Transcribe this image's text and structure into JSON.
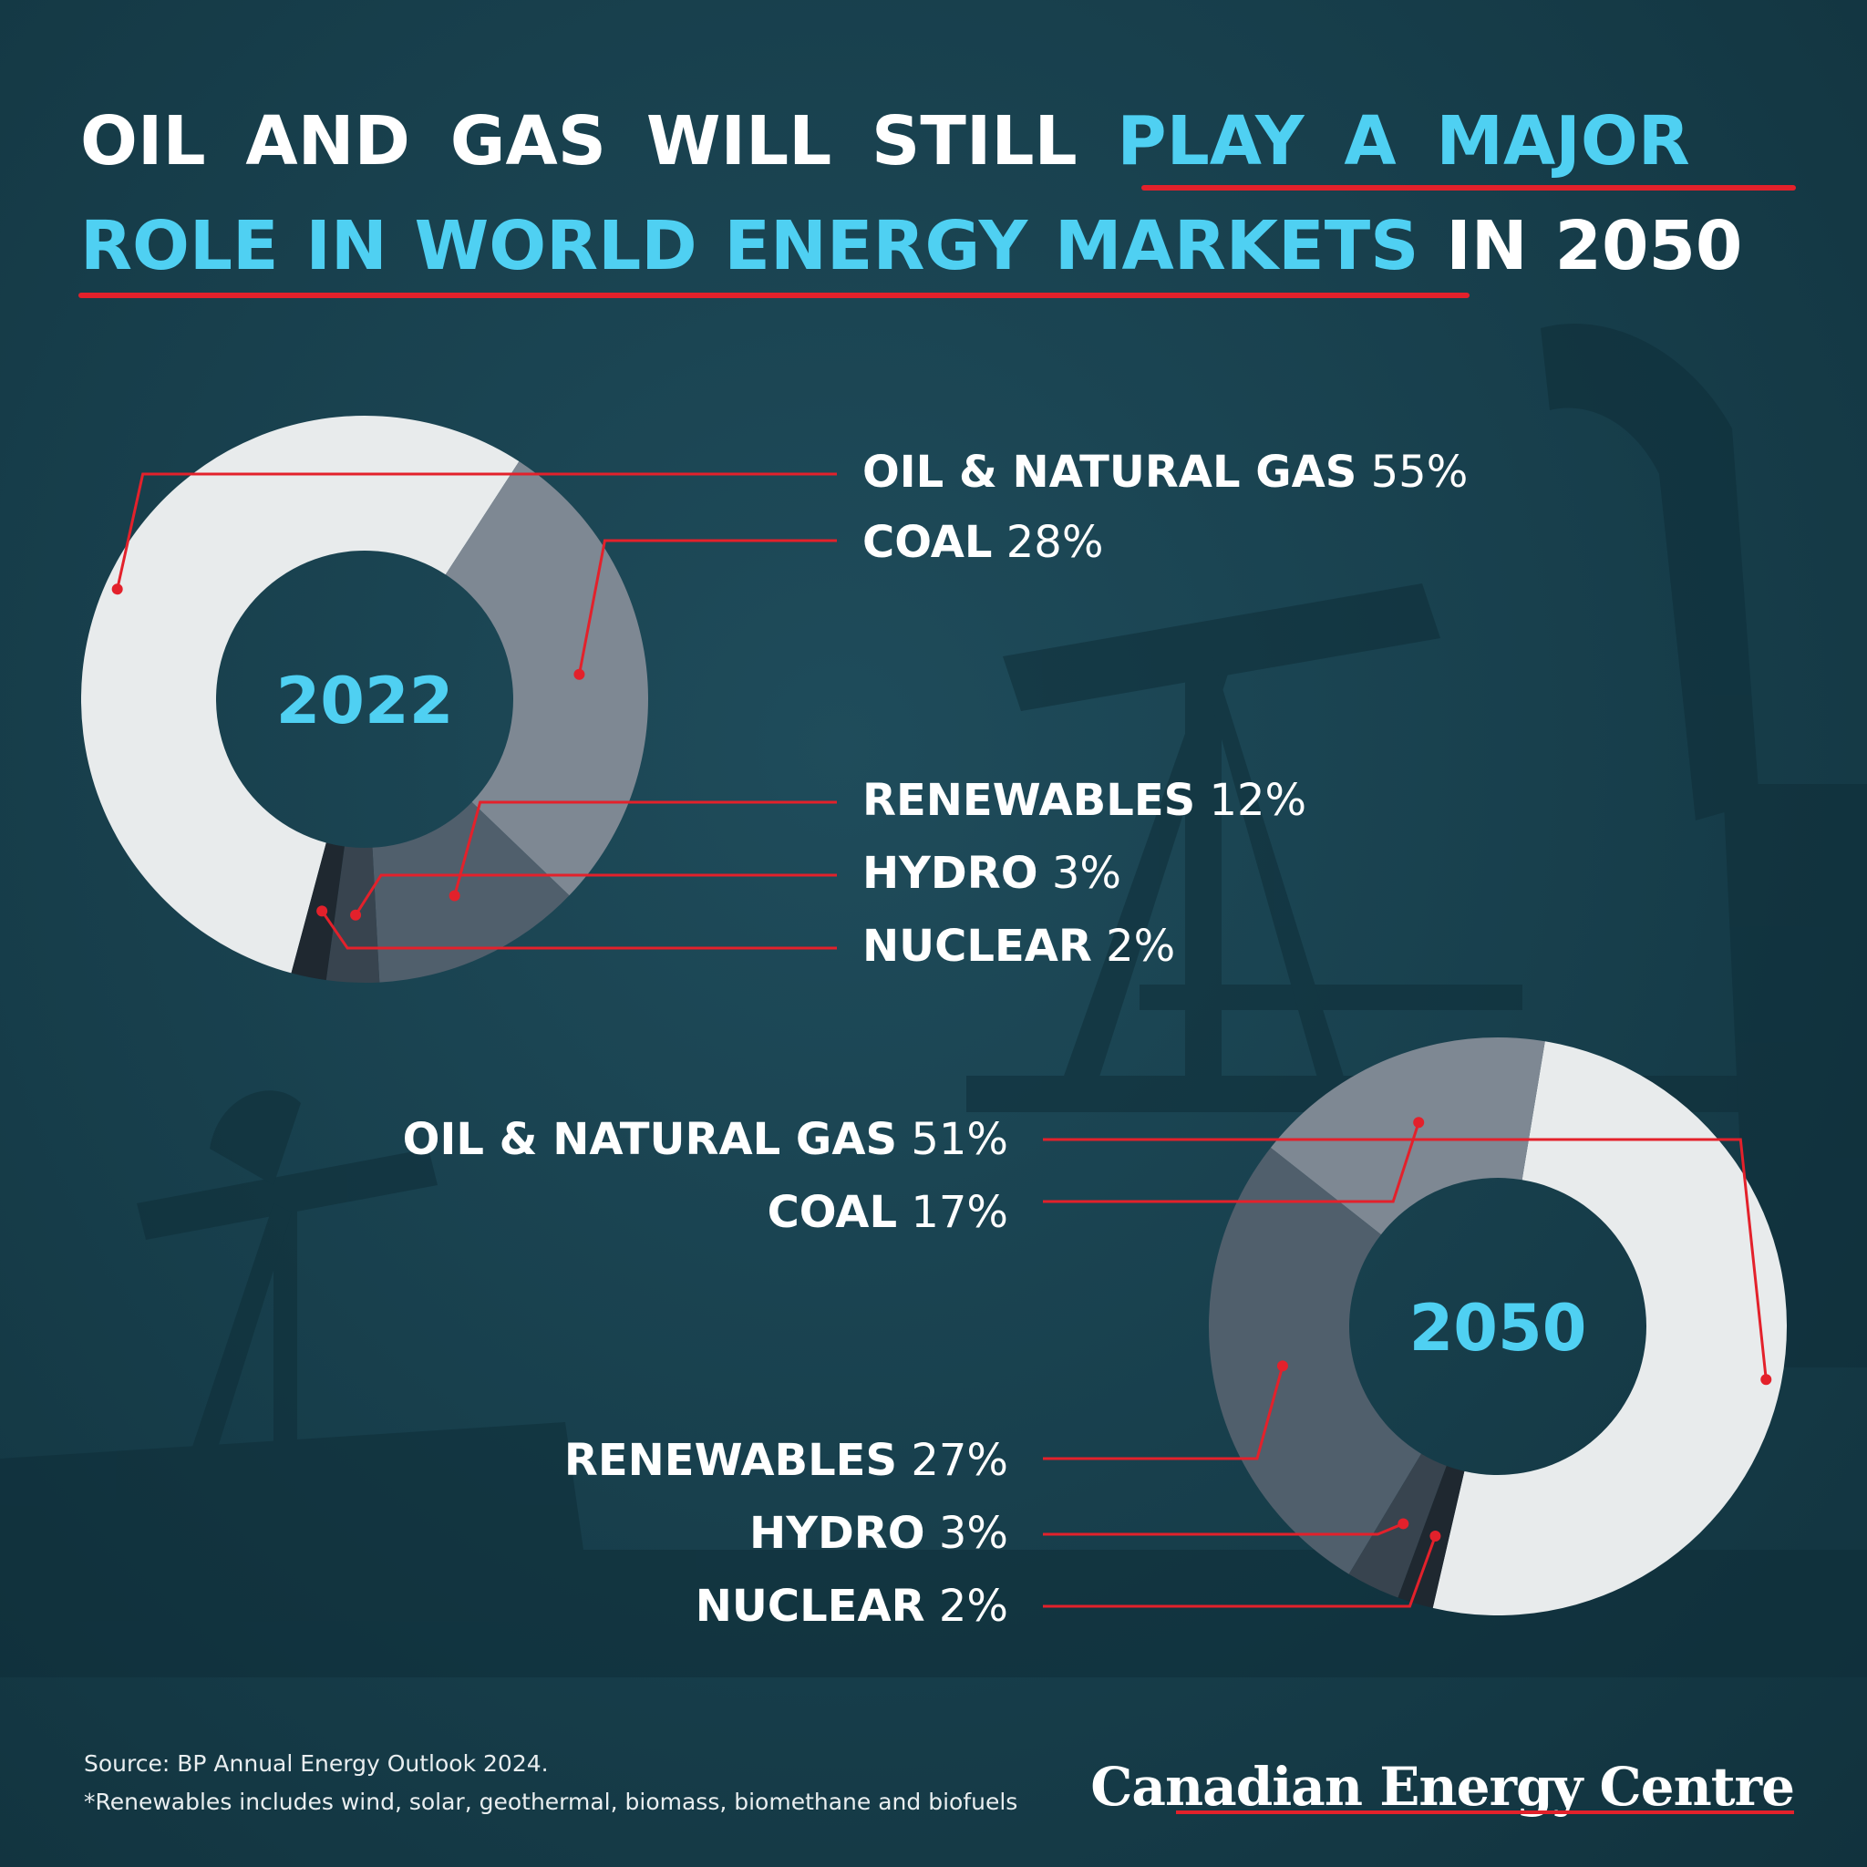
{
  "headline": {
    "line1_white": "OIL AND GAS WILL STILL",
    "line1_accent": "PLAY A MAJOR",
    "line2_accent": "ROLE IN WORLD ENERGY MARKETS",
    "line2_white": "IN 2050"
  },
  "colors": {
    "accent": "#4fd0f2",
    "underline": "#e3212b",
    "oil_gas": "#e8ebec",
    "coal": "#7e8893",
    "renewables": "#505f6c",
    "hydro": "#38444f",
    "nuclear": "#1f2830",
    "leader": "#e3212b"
  },
  "chart_data": [
    {
      "type": "pie",
      "center_label": "2022",
      "categories": [
        "OIL & NATURAL GAS",
        "COAL",
        "RENEWABLES",
        "HYDRO",
        "NUCLEAR"
      ],
      "values": [
        55,
        28,
        12,
        3,
        2
      ],
      "value_labels": [
        "55%",
        "28%",
        "12%",
        "3%",
        "2%"
      ]
    },
    {
      "type": "pie",
      "center_label": "2050",
      "categories": [
        "OIL & NATURAL GAS",
        "COAL",
        "RENEWABLES",
        "HYDRO",
        "NUCLEAR"
      ],
      "values": [
        51,
        17,
        27,
        3,
        2
      ],
      "value_labels": [
        "51%",
        "17%",
        "27%",
        "3%",
        "2%"
      ]
    }
  ],
  "footer": {
    "source": "Source: BP Annual Energy Outlook 2024.",
    "note": "*Renewables includes wind, solar, geothermal, biomass, biomethane and biofuels",
    "brand": "Canadian Energy Centre"
  }
}
